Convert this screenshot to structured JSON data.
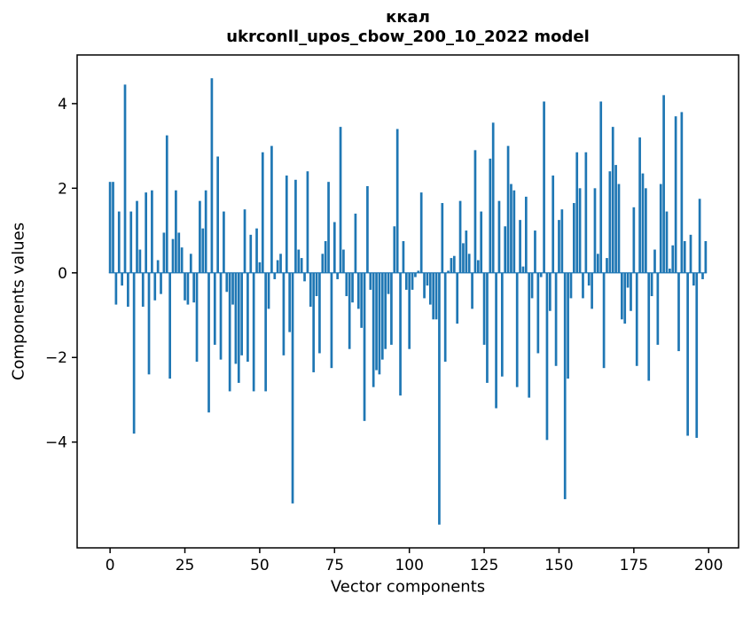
{
  "chart_data": {
    "type": "bar",
    "title": "ккал",
    "subtitle": "ukrconll_upos_cbow_200_10_2022 model",
    "xlabel": "Vector components",
    "ylabel": "Components values",
    "n_components": 200,
    "x_ticks": [
      0,
      25,
      50,
      75,
      100,
      125,
      150,
      175,
      200
    ],
    "y_ticks": [
      -4,
      -2,
      0,
      2,
      4
    ],
    "xlim": [
      -11,
      210
    ],
    "ylim": [
      -6.5,
      5.15
    ],
    "grid": false,
    "legend": null,
    "bar_color": "#1f77b4",
    "bar_width": 0.8,
    "values": [
      2.15,
      2.15,
      -0.75,
      1.45,
      -0.3,
      4.45,
      -0.8,
      1.45,
      -3.8,
      1.7,
      0.55,
      -0.8,
      1.9,
      -2.4,
      1.95,
      -0.65,
      0.3,
      -0.5,
      0.95,
      3.25,
      -2.5,
      0.8,
      1.95,
      0.95,
      0.6,
      -0.65,
      -0.75,
      0.45,
      -0.7,
      -2.1,
      1.7,
      1.05,
      1.95,
      -3.3,
      4.6,
      -1.7,
      2.75,
      -2.05,
      1.45,
      -0.45,
      -2.8,
      -0.75,
      -2.15,
      -2.6,
      -1.95,
      1.5,
      -2.1,
      0.9,
      -2.8,
      1.05,
      0.25,
      2.85,
      -2.8,
      -0.85,
      3.0,
      -0.15,
      0.3,
      0.45,
      -1.95,
      2.3,
      -1.4,
      -5.45,
      2.2,
      0.55,
      0.35,
      -0.2,
      2.4,
      -0.8,
      -2.35,
      -0.55,
      -1.9,
      0.45,
      0.75,
      2.15,
      -2.25,
      1.2,
      -0.15,
      3.45,
      0.55,
      -0.55,
      -1.8,
      -0.7,
      1.4,
      -0.85,
      -1.3,
      -3.5,
      2.05,
      -0.4,
      -2.7,
      -2.3,
      -2.4,
      -2.05,
      -1.8,
      -0.5,
      -1.7,
      1.1,
      3.4,
      -2.9,
      0.75,
      -0.4,
      -1.8,
      -0.4,
      -0.1,
      0.05,
      1.9,
      -0.6,
      -0.3,
      -0.75,
      -1.1,
      -1.1,
      -5.95,
      1.65,
      -2.1,
      0.05,
      0.35,
      0.4,
      -1.2,
      1.7,
      0.7,
      1.0,
      0.45,
      -0.85,
      2.9,
      0.3,
      1.45,
      -1.7,
      -2.6,
      2.7,
      3.55,
      -3.2,
      1.7,
      -2.45,
      1.1,
      3.0,
      2.1,
      1.95,
      -2.7,
      1.25,
      0.15,
      1.8,
      -2.95,
      -0.6,
      1.0,
      -1.9,
      -0.1,
      4.05,
      -3.95,
      -0.9,
      2.3,
      -2.2,
      1.25,
      1.5,
      -5.35,
      -2.5,
      -0.6,
      1.65,
      2.85,
      2.0,
      -0.6,
      2.85,
      -0.3,
      -0.85,
      2.0,
      0.45,
      4.05,
      -2.25,
      0.35,
      2.4,
      3.45,
      2.55,
      2.1,
      -1.1,
      -1.2,
      -0.35,
      -0.9,
      1.55,
      -2.2,
      3.2,
      2.35,
      2.0,
      -2.55,
      -0.55,
      0.55,
      -1.7,
      2.1,
      4.2,
      1.45,
      0.1,
      0.65,
      3.7,
      -1.85,
      3.8,
      0.75,
      -3.85,
      0.9,
      -0.3,
      -3.9,
      1.75,
      -0.15,
      0.75
    ]
  }
}
